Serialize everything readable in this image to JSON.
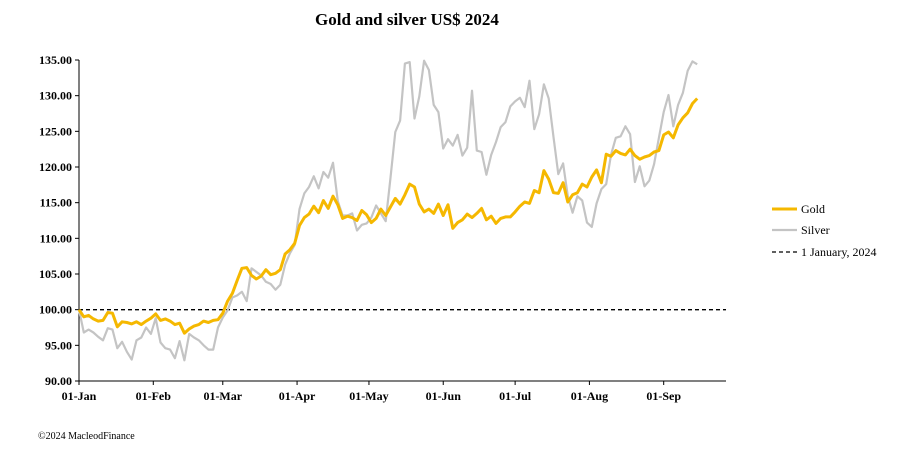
{
  "chart_data": {
    "type": "line",
    "title": "Gold and silver  US$ 2024",
    "xlabel": "",
    "ylabel": "",
    "ylim": [
      90,
      135
    ],
    "yticks": [
      "90.00",
      "95.00",
      "100.00",
      "105.00",
      "110.00",
      "115.00",
      "120.00",
      "125.00",
      "130.00",
      "135.00"
    ],
    "x_tick_labels": [
      "01-Jan",
      "01-Feb",
      "01-Mar",
      "01-Apr",
      "01-May",
      "01-Jun",
      "01-Jul",
      "01-Aug",
      "01-Sep"
    ],
    "x_tick_days": [
      0,
      31,
      60,
      91,
      121,
      152,
      182,
      213,
      244
    ],
    "x_range_days": [
      0,
      270
    ],
    "baseline": {
      "name": "1 January, 2024",
      "value": 100,
      "color": "#000000"
    },
    "series": [
      {
        "name": "Gold",
        "color": "#F5B800",
        "points": [
          [
            0,
            100
          ],
          [
            2,
            99
          ],
          [
            4,
            99.2
          ],
          [
            6,
            98.7
          ],
          [
            8,
            98.4
          ],
          [
            10,
            98.5
          ],
          [
            12,
            99.6
          ],
          [
            14,
            99.5
          ],
          [
            16,
            97.6
          ],
          [
            18,
            98.3
          ],
          [
            20,
            98.2
          ],
          [
            22,
            98
          ],
          [
            24,
            98.3
          ],
          [
            26,
            97.9
          ],
          [
            28,
            98.4
          ],
          [
            30,
            98.8
          ],
          [
            32,
            99.4
          ],
          [
            34,
            98.5
          ],
          [
            36,
            98.7
          ],
          [
            38,
            98.4
          ],
          [
            40,
            97.9
          ],
          [
            42,
            98.1
          ],
          [
            44,
            96.7
          ],
          [
            46,
            97.3
          ],
          [
            48,
            97.7
          ],
          [
            50,
            97.9
          ],
          [
            52,
            98.4
          ],
          [
            54,
            98.2
          ],
          [
            56,
            98.5
          ],
          [
            58,
            98.6
          ],
          [
            60,
            99.5
          ],
          [
            62,
            101.2
          ],
          [
            64,
            102.3
          ],
          [
            66,
            104.1
          ],
          [
            68,
            105.8
          ],
          [
            70,
            105.9
          ],
          [
            72,
            104.8
          ],
          [
            74,
            104.3
          ],
          [
            76,
            104.7
          ],
          [
            78,
            105.6
          ],
          [
            80,
            104.9
          ],
          [
            82,
            105.1
          ],
          [
            84,
            105.6
          ],
          [
            86,
            107.8
          ],
          [
            88,
            108.4
          ],
          [
            90,
            109.3
          ],
          [
            92,
            111.8
          ],
          [
            94,
            112.9
          ],
          [
            96,
            113.4
          ],
          [
            98,
            114.5
          ],
          [
            100,
            113.6
          ],
          [
            102,
            115.3
          ],
          [
            104,
            114.2
          ],
          [
            106,
            115.9
          ],
          [
            108,
            114.7
          ],
          [
            110,
            112.8
          ],
          [
            112,
            113.1
          ],
          [
            114,
            112.9
          ],
          [
            116,
            112.5
          ],
          [
            118,
            113.9
          ],
          [
            120,
            113.3
          ],
          [
            122,
            112.2
          ],
          [
            124,
            112.8
          ],
          [
            126,
            114.1
          ],
          [
            128,
            113.2
          ],
          [
            130,
            114.4
          ],
          [
            132,
            115.6
          ],
          [
            134,
            114.8
          ],
          [
            136,
            116.1
          ],
          [
            138,
            117.6
          ],
          [
            140,
            117.2
          ],
          [
            142,
            114.8
          ],
          [
            144,
            113.7
          ],
          [
            146,
            114.1
          ],
          [
            148,
            113.5
          ],
          [
            150,
            114.8
          ],
          [
            152,
            113.2
          ],
          [
            154,
            114.7
          ],
          [
            156,
            111.4
          ],
          [
            158,
            112.2
          ],
          [
            160,
            112.6
          ],
          [
            162,
            113.4
          ],
          [
            164,
            112.9
          ],
          [
            166,
            113.5
          ],
          [
            168,
            114.2
          ],
          [
            170,
            112.6
          ],
          [
            172,
            113.1
          ],
          [
            174,
            112.1
          ],
          [
            176,
            112.8
          ],
          [
            178,
            113
          ],
          [
            180,
            113
          ],
          [
            182,
            113.7
          ],
          [
            184,
            114.5
          ],
          [
            186,
            115.1
          ],
          [
            188,
            114.9
          ],
          [
            190,
            116.7
          ],
          [
            192,
            116.4
          ],
          [
            194,
            119.5
          ],
          [
            196,
            118.3
          ],
          [
            198,
            116.4
          ],
          [
            200,
            116.3
          ],
          [
            202,
            117.8
          ],
          [
            204,
            115.1
          ],
          [
            206,
            116.1
          ],
          [
            208,
            116.4
          ],
          [
            210,
            117.6
          ],
          [
            212,
            117.2
          ],
          [
            214,
            118.6
          ],
          [
            216,
            119.6
          ],
          [
            218,
            117.8
          ],
          [
            220,
            121.8
          ],
          [
            222,
            121.5
          ],
          [
            224,
            122.3
          ],
          [
            226,
            121.9
          ],
          [
            228,
            121.7
          ],
          [
            230,
            122.5
          ],
          [
            232,
            121.6
          ],
          [
            234,
            121.1
          ],
          [
            236,
            121.4
          ],
          [
            238,
            121.6
          ],
          [
            240,
            122.1
          ],
          [
            242,
            122.3
          ],
          [
            244,
            124.5
          ],
          [
            246,
            124.9
          ],
          [
            248,
            124.1
          ],
          [
            250,
            125.9
          ],
          [
            252,
            126.9
          ],
          [
            254,
            127.6
          ],
          [
            256,
            128.9
          ],
          [
            258,
            129.6
          ]
        ]
      },
      {
        "name": "Silver",
        "color": "#C4C4C4",
        "points": [
          [
            0,
            100
          ],
          [
            2,
            96.8
          ],
          [
            4,
            97.2
          ],
          [
            6,
            96.8
          ],
          [
            8,
            96.2
          ],
          [
            10,
            95.7
          ],
          [
            12,
            97.4
          ],
          [
            14,
            97.2
          ],
          [
            16,
            94.6
          ],
          [
            18,
            95.5
          ],
          [
            20,
            94.1
          ],
          [
            22,
            93
          ],
          [
            24,
            95.7
          ],
          [
            26,
            96.1
          ],
          [
            28,
            97.5
          ],
          [
            30,
            96.6
          ],
          [
            32,
            98.8
          ],
          [
            34,
            95.4
          ],
          [
            36,
            94.6
          ],
          [
            38,
            94.4
          ],
          [
            40,
            93.2
          ],
          [
            42,
            95.6
          ],
          [
            44,
            92.9
          ],
          [
            46,
            96.6
          ],
          [
            48,
            96.1
          ],
          [
            50,
            95.7
          ],
          [
            52,
            95
          ],
          [
            54,
            94.4
          ],
          [
            56,
            94.4
          ],
          [
            58,
            97.5
          ],
          [
            60,
            98.9
          ],
          [
            62,
            99.9
          ],
          [
            64,
            101.7
          ],
          [
            66,
            102
          ],
          [
            68,
            102.5
          ],
          [
            70,
            101.2
          ],
          [
            72,
            105.8
          ],
          [
            74,
            105.3
          ],
          [
            76,
            104.8
          ],
          [
            78,
            103.9
          ],
          [
            80,
            103.6
          ],
          [
            82,
            102.8
          ],
          [
            84,
            103.5
          ],
          [
            86,
            106.3
          ],
          [
            88,
            107.9
          ],
          [
            90,
            109.1
          ],
          [
            92,
            114.1
          ],
          [
            94,
            116.3
          ],
          [
            96,
            117.2
          ],
          [
            98,
            118.7
          ],
          [
            100,
            117
          ],
          [
            102,
            119.3
          ],
          [
            104,
            118.5
          ],
          [
            106,
            120.6
          ],
          [
            108,
            115.2
          ],
          [
            110,
            113.2
          ],
          [
            112,
            113.2
          ],
          [
            114,
            113.5
          ],
          [
            116,
            111.1
          ],
          [
            118,
            111.9
          ],
          [
            120,
            112.1
          ],
          [
            122,
            112.9
          ],
          [
            124,
            114.6
          ],
          [
            126,
            113.5
          ],
          [
            128,
            112.4
          ],
          [
            130,
            118.5
          ],
          [
            132,
            124.9
          ],
          [
            134,
            126.5
          ],
          [
            136,
            134.5
          ],
          [
            138,
            134.7
          ],
          [
            140,
            126.8
          ],
          [
            142,
            129.9
          ],
          [
            144,
            134.9
          ],
          [
            146,
            133.6
          ],
          [
            148,
            128.7
          ],
          [
            150,
            127.7
          ],
          [
            152,
            122.6
          ],
          [
            154,
            123.9
          ],
          [
            156,
            123
          ],
          [
            158,
            124.5
          ],
          [
            160,
            121.6
          ],
          [
            162,
            122.7
          ],
          [
            164,
            130.7
          ],
          [
            166,
            122.3
          ],
          [
            168,
            122.1
          ],
          [
            170,
            118.9
          ],
          [
            172,
            121.7
          ],
          [
            174,
            123.5
          ],
          [
            176,
            125.6
          ],
          [
            178,
            126.3
          ],
          [
            180,
            128.5
          ],
          [
            182,
            129.2
          ],
          [
            184,
            129.7
          ],
          [
            186,
            128.4
          ],
          [
            188,
            132.1
          ],
          [
            190,
            125.3
          ],
          [
            192,
            127.4
          ],
          [
            194,
            131.6
          ],
          [
            196,
            129.6
          ],
          [
            198,
            124.2
          ],
          [
            200,
            119
          ],
          [
            202,
            120.5
          ],
          [
            204,
            115.9
          ],
          [
            206,
            113.6
          ],
          [
            208,
            115.9
          ],
          [
            210,
            115.3
          ],
          [
            212,
            112.2
          ],
          [
            214,
            111.6
          ],
          [
            216,
            114.9
          ],
          [
            218,
            116.9
          ],
          [
            220,
            117.6
          ],
          [
            222,
            121.7
          ],
          [
            224,
            124.1
          ],
          [
            226,
            124.3
          ],
          [
            228,
            125.7
          ],
          [
            230,
            124.6
          ],
          [
            232,
            117.9
          ],
          [
            234,
            120.1
          ],
          [
            236,
            117.3
          ],
          [
            238,
            118.1
          ],
          [
            240,
            120.4
          ],
          [
            242,
            124.1
          ],
          [
            244,
            127.7
          ],
          [
            246,
            130.1
          ],
          [
            248,
            125.7
          ],
          [
            250,
            128.7
          ],
          [
            252,
            130.4
          ],
          [
            254,
            133.5
          ],
          [
            256,
            134.8
          ],
          [
            258,
            134.4
          ]
        ]
      }
    ],
    "legend": {
      "position": "right",
      "items": [
        "Gold",
        "Silver",
        "1 January, 2024"
      ]
    }
  },
  "footer": {
    "copyright": "©2024 MacleodFinance"
  }
}
